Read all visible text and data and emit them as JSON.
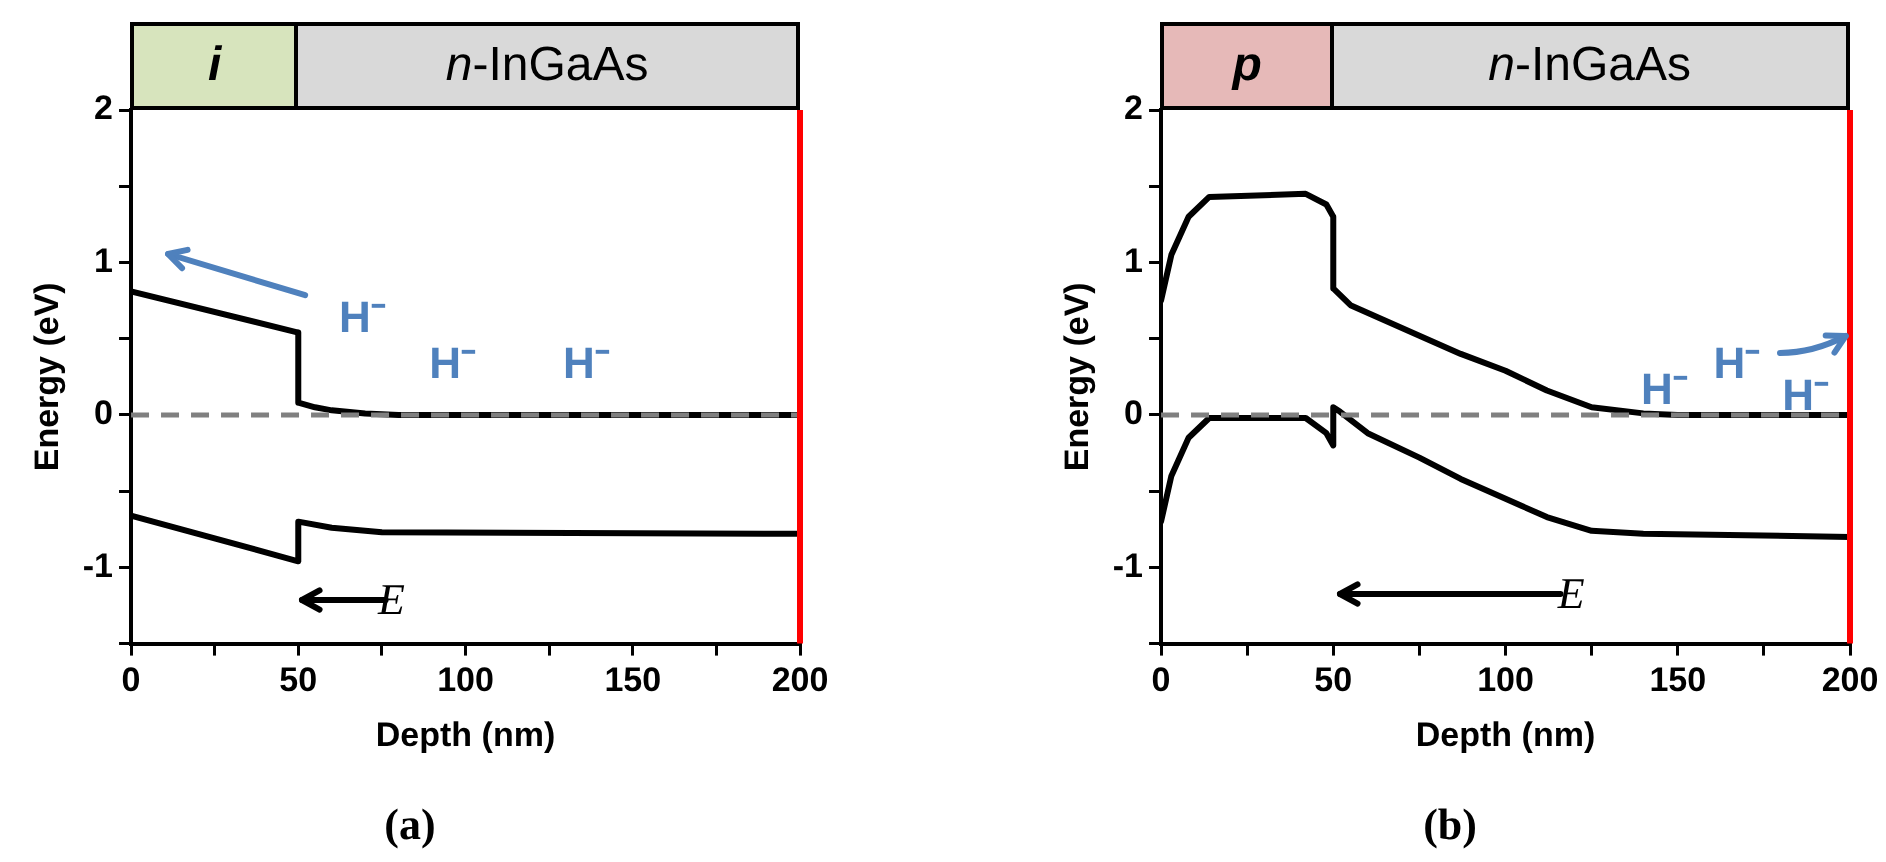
{
  "chart_data": [
    {
      "type": "line",
      "title": "(a)",
      "xlabel": "Depth (nm)",
      "ylabel": "Energy (eV)",
      "xlim": [
        0,
        200
      ],
      "ylim": [
        -1.5,
        2
      ],
      "xticks": [
        0,
        {
          "value": 25,
          "label": null
        },
        50,
        {
          "value": 75,
          "label": null
        },
        100,
        {
          "value": 125,
          "label": null
        },
        150,
        {
          "value": 175,
          "label": null
        },
        200
      ],
      "yticks": [
        {
          "value": -1.5,
          "label": null
        },
        -1,
        {
          "value": -0.5,
          "label": null
        },
        0,
        {
          "value": 0.5,
          "label": null
        },
        1,
        {
          "value": 1.5,
          "label": null
        },
        2
      ],
      "marker": "none",
      "line_style": "solid",
      "series": [
        {
          "color": "#000000",
          "x": [
            0,
            50,
            50,
            55,
            60,
            70,
            80,
            200
          ],
          "values": [
            0.81,
            0.54,
            0.08,
            0.05,
            0.03,
            0.01,
            0,
            0
          ]
        },
        {
          "color": "#000000",
          "x": [
            0,
            50,
            50,
            60,
            75,
            200
          ],
          "values": [
            -0.66,
            -0.96,
            -0.7,
            -0.74,
            -0.77,
            -0.78
          ]
        }
      ],
      "ref_lines": [
        {
          "axis": "y",
          "value": 0,
          "color": "#808080",
          "line_style": "dashed"
        },
        {
          "axis": "x",
          "value": 200,
          "color": "#ff0000",
          "line_style": "solid"
        }
      ],
      "annotations": [
        "i",
        "n-InGaAs",
        "E⃗",
        "H⁻",
        "H⁻",
        "H⁻"
      ]
    },
    {
      "type": "line",
      "title": "(b)",
      "xlabel": "Depth (nm)",
      "ylabel": "Energy (eV)",
      "xlim": [
        0,
        200
      ],
      "ylim": [
        -1.5,
        2
      ],
      "xticks": [
        0,
        {
          "value": 25,
          "label": null
        },
        50,
        {
          "value": 75,
          "label": null
        },
        100,
        {
          "value": 125,
          "label": null
        },
        150,
        {
          "value": 175,
          "label": null
        },
        200
      ],
      "yticks": [
        {
          "value": -1.5,
          "label": null
        },
        -1,
        {
          "value": -0.5,
          "label": null
        },
        0,
        {
          "value": 0.5,
          "label": null
        },
        1,
        {
          "value": 1.5,
          "label": null
        },
        2
      ],
      "marker": "none",
      "line_style": "solid",
      "series": [
        {
          "color": "#000000",
          "x": [
            0,
            3,
            8,
            14,
            42,
            48,
            50,
            50,
            55,
            65,
            75,
            87,
            100,
            112,
            125,
            140,
            150,
            200
          ],
          "values": [
            0.75,
            1.05,
            1.3,
            1.43,
            1.45,
            1.38,
            1.3,
            0.83,
            0.72,
            0.62,
            0.52,
            0.4,
            0.29,
            0.16,
            0.05,
            0.01,
            0,
            0
          ]
        },
        {
          "color": "#000000",
          "x": [
            0,
            3,
            8,
            14,
            42,
            48,
            50,
            50,
            52,
            60,
            75,
            87,
            100,
            112,
            125,
            140,
            200
          ],
          "values": [
            -0.7,
            -0.4,
            -0.15,
            -0.02,
            -0.02,
            -0.12,
            -0.2,
            0.05,
            0.02,
            -0.12,
            -0.28,
            -0.42,
            -0.55,
            -0.67,
            -0.76,
            -0.78,
            -0.8
          ]
        }
      ],
      "ref_lines": [
        {
          "axis": "y",
          "value": 0,
          "color": "#808080",
          "line_style": "dashed"
        },
        {
          "axis": "x",
          "value": 200,
          "color": "#ff0000",
          "line_style": "solid"
        }
      ],
      "annotations": [
        "p",
        "n-InGaAs",
        "E⃗",
        "H⁻",
        {
          "text": "H⁻",
          "x": 200,
          "y": 0.52
        },
        "H⁻"
      ]
    }
  ]
}
